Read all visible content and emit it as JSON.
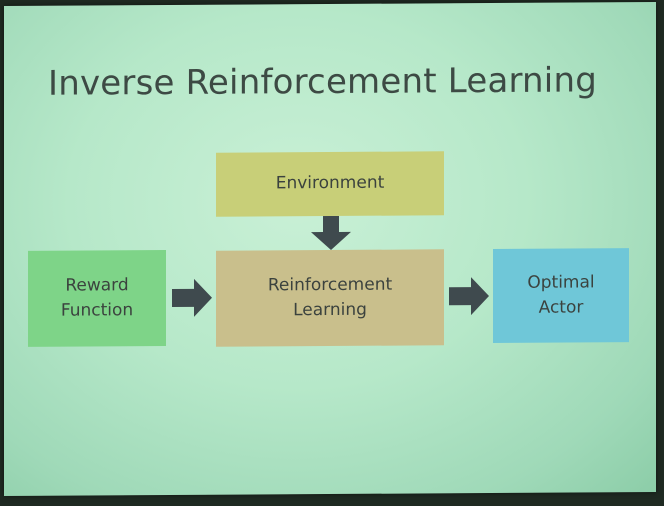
{
  "slide": {
    "title": "Inverse Reinforcement Learning",
    "boxes": {
      "environment": "Environment",
      "reinforcement_learning": "Reinforcement\nLearning",
      "reward_function": "Reward\nFunction",
      "optimal_actor": "Optimal\nActor"
    },
    "colors": {
      "background": "#b6e8c9",
      "environment": "#c8cf78",
      "reinforcement_learning": "#c9bf8c",
      "reward_function": "#7ed488",
      "optimal_actor": "#6fc7d8",
      "arrow": "#3f4a4e"
    }
  }
}
